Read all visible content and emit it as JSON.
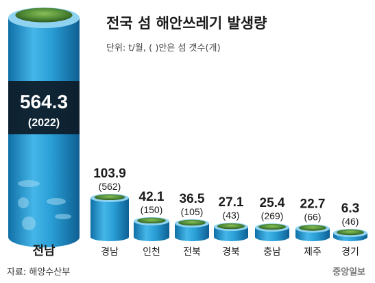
{
  "chart_data": {
    "type": "bar",
    "title": "전국 섬 해안쓰레기 발생량",
    "subtitle": "단위: t/월, ( )안은 섬 갯수(개)",
    "categories": [
      "전남",
      "경남",
      "인천",
      "전북",
      "경북",
      "충남",
      "제주",
      "경기"
    ],
    "values": [
      564.3,
      103.9,
      42.1,
      36.5,
      27.1,
      25.4,
      22.7,
      6.3
    ],
    "value_labels": [
      "564.3",
      "103.9",
      "42.1",
      "36.5",
      "27.1",
      "25.4",
      "22.7",
      "6.3"
    ],
    "island_counts": [
      "(2022)",
      "(562)",
      "(150)",
      "(105)",
      "(43)",
      "(269)",
      "(66)",
      "(46)"
    ],
    "source": "자료: 해양수산부",
    "colors": {
      "cylinder": "#2a9fd6",
      "cylinder_dark": "#1478b0",
      "top": "#8fd3f0",
      "label_band": "#0d1a26"
    }
  },
  "footer": {
    "logo": "중앙일보"
  }
}
